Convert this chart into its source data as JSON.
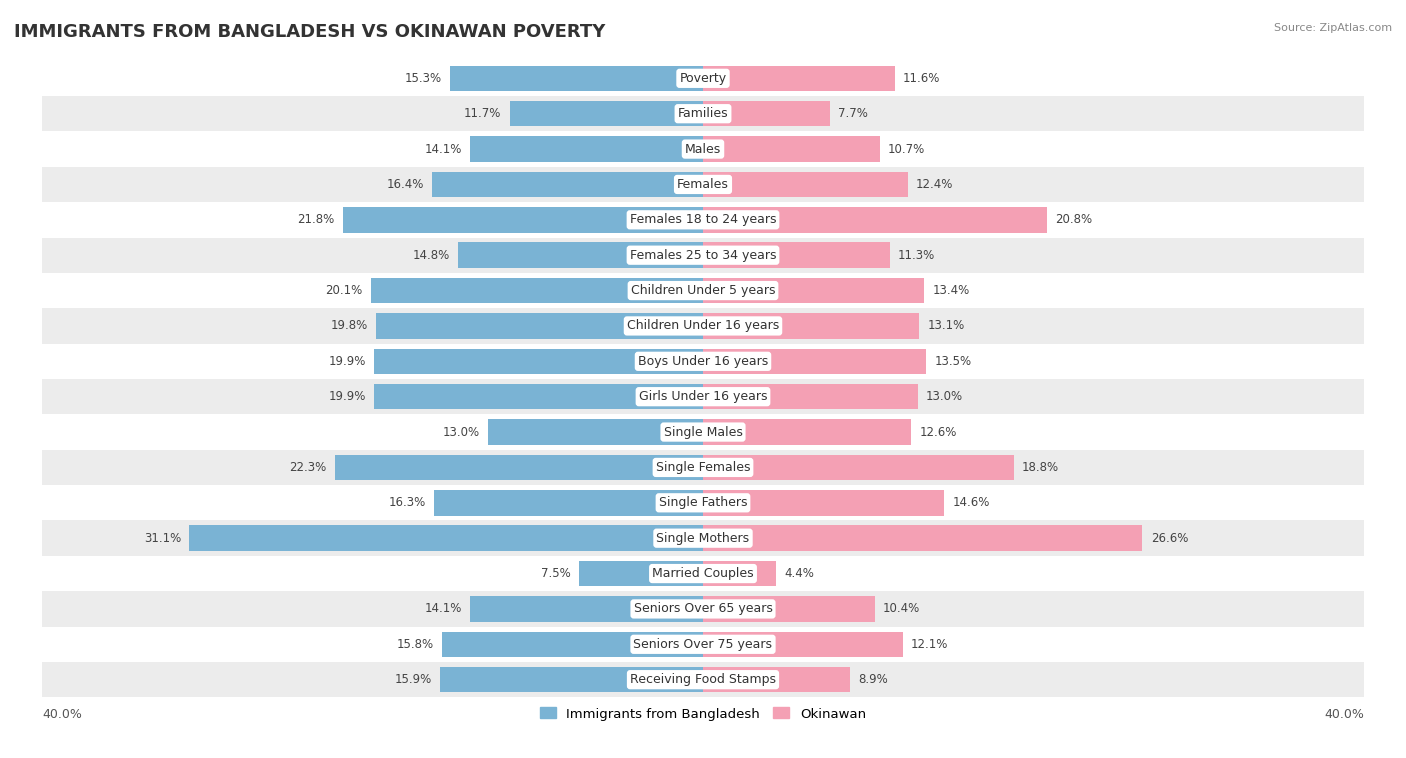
{
  "title": "IMMIGRANTS FROM BANGLADESH VS OKINAWAN POVERTY",
  "source": "Source: ZipAtlas.com",
  "categories": [
    "Poverty",
    "Families",
    "Males",
    "Females",
    "Females 18 to 24 years",
    "Females 25 to 34 years",
    "Children Under 5 years",
    "Children Under 16 years",
    "Boys Under 16 years",
    "Girls Under 16 years",
    "Single Males",
    "Single Females",
    "Single Fathers",
    "Single Mothers",
    "Married Couples",
    "Seniors Over 65 years",
    "Seniors Over 75 years",
    "Receiving Food Stamps"
  ],
  "bangladesh_values": [
    15.3,
    11.7,
    14.1,
    16.4,
    21.8,
    14.8,
    20.1,
    19.8,
    19.9,
    19.9,
    13.0,
    22.3,
    16.3,
    31.1,
    7.5,
    14.1,
    15.8,
    15.9
  ],
  "okinawan_values": [
    11.6,
    7.7,
    10.7,
    12.4,
    20.8,
    11.3,
    13.4,
    13.1,
    13.5,
    13.0,
    12.6,
    18.8,
    14.6,
    26.6,
    4.4,
    10.4,
    12.1,
    8.9
  ],
  "bangladesh_color": "#7ab3d4",
  "okinawan_color": "#f4a0b4",
  "bar_height": 0.72,
  "xlim": 40.0,
  "row_light": "#ffffff",
  "row_dark": "#ececec",
  "label_fontsize": 9,
  "value_fontsize": 8.5,
  "title_fontsize": 13
}
